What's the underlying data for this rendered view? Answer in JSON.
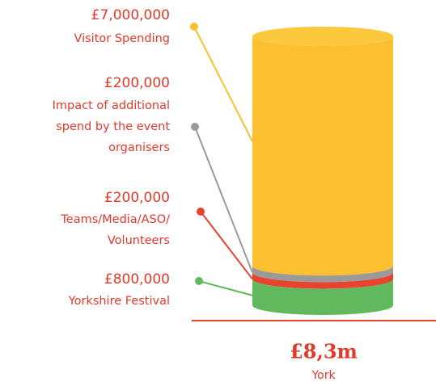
{
  "chart_data": {
    "type": "stacked_cylinder",
    "categories": [
      "York"
    ],
    "total_label": "£8,3m",
    "series": [
      {
        "name": [
          "Visitor Spending"
        ],
        "color": "#fbbf2f",
        "values": [
          7000000
        ],
        "value_labels": [
          "£7,000,000"
        ]
      },
      {
        "name": [
          "Impact of additional",
          "spend by the event",
          "organisers"
        ],
        "color": "#9a9a9a",
        "values": [
          200000
        ],
        "value_labels": [
          "£200,000"
        ]
      },
      {
        "name": [
          "Teams/Media/ASO/",
          "Volunteers"
        ],
        "color": "#e8432e",
        "values": [
          200000
        ],
        "value_labels": [
          "£200,000"
        ]
      },
      {
        "name": [
          "Yorkshire Festival"
        ],
        "color": "#62b95d",
        "values": [
          800000
        ],
        "value_labels": [
          "£800,000"
        ]
      }
    ]
  }
}
